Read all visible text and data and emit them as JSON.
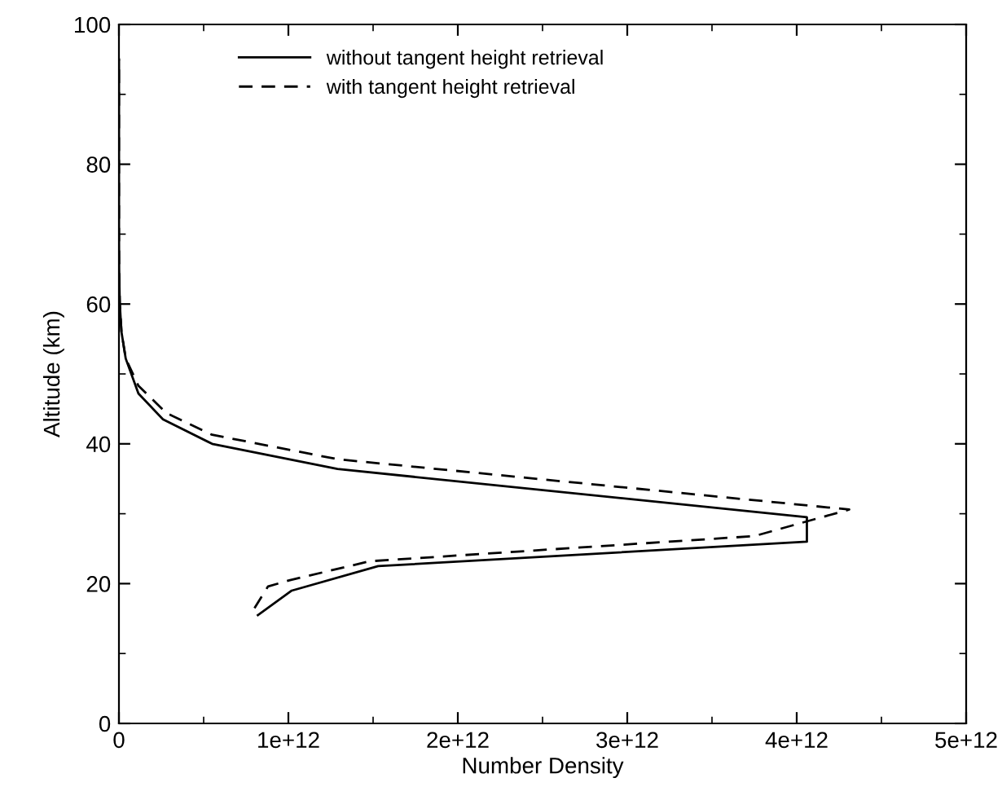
{
  "chart_data": {
    "type": "line",
    "xlabel": "Number Density",
    "ylabel": "Altitude (km)",
    "xlim": [
      0,
      5000000000000.0
    ],
    "ylim": [
      0,
      100
    ],
    "xticks": [
      0,
      {
        "value": 1000000000000.0,
        "label": "1e+12"
      },
      {
        "value": 2000000000000.0,
        "label": "2e+12"
      },
      {
        "value": 3000000000000.0,
        "label": "3e+12"
      },
      {
        "value": 4000000000000.0,
        "label": "4e+12"
      },
      {
        "value": 5000000000000.0,
        "label": "5e+12"
      }
    ],
    "yticks": [
      0,
      20,
      40,
      60,
      80,
      100
    ],
    "grid": false,
    "legend": "top left",
    "marker": "none",
    "series": [
      {
        "name": "without tangent height retrieval",
        "color": "#000000",
        "line_style": "solid",
        "x": [
          820000000000.0,
          1020000000000.0,
          1530000000000.0,
          4060000000000.0,
          4060000000000.0,
          1290000000000.0,
          550000000000.0,
          260000000000.0,
          115000000000.0,
          40000000000.0,
          15000000000.0,
          5000000000.0,
          1000000000.0,
          0,
          0
        ],
        "values": [
          15.5,
          19.0,
          22.5,
          26.0,
          29.5,
          36.4,
          40.0,
          43.5,
          47.2,
          52.2,
          56,
          60,
          65,
          70,
          95
        ]
      },
      {
        "name": "with tangent height retrieval",
        "color": "#000000",
        "line_style": "dashed",
        "x": [
          800000000000.0,
          880000000000.0,
          1010000000000.0,
          1480000000000.0,
          3750000000000.0,
          4310000000000.0,
          1290000000000.0,
          550000000000.0,
          280000000000.0,
          115000000000.0,
          40000000000.0,
          15000000000.0,
          5000000000.0,
          1000000000.0,
          0,
          0
        ],
        "values": [
          16.5,
          19.6,
          20.5,
          23.2,
          26.8,
          30.6,
          37.8,
          41.3,
          44.4,
          48.3,
          52.2,
          56,
          60,
          65,
          70,
          95
        ]
      }
    ]
  }
}
